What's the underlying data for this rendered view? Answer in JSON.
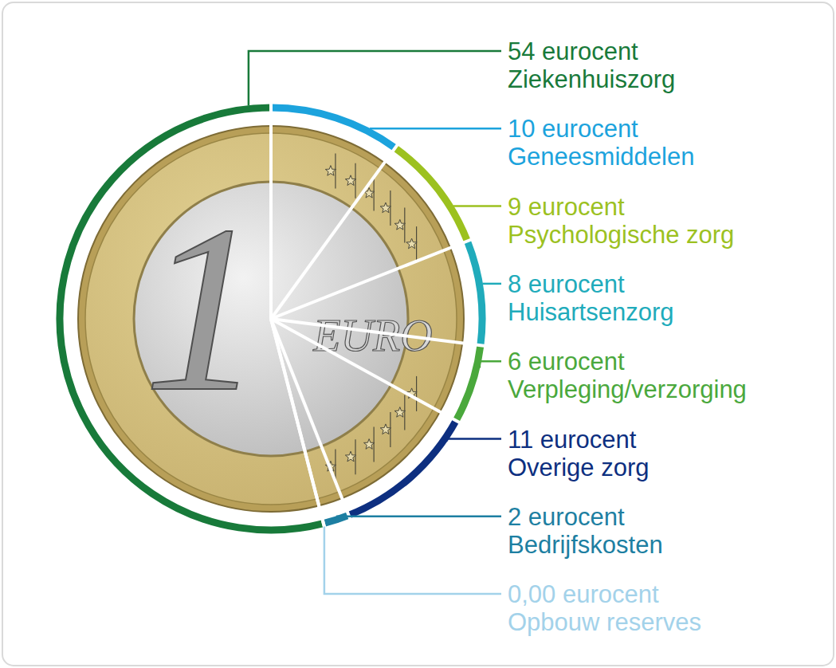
{
  "chart_data": {
    "type": "pie",
    "categories": [
      "Ziekenhuiszorg",
      "Geneesmiddelen",
      "Psychologische zorg",
      "Huisartsenzorg",
      "Verpleging/verzorging",
      "Overige zorg",
      "Bedrijfskosten",
      "Opbouw reserves"
    ],
    "values": [
      54,
      10,
      9,
      8,
      6,
      11,
      2,
      0
    ],
    "value_labels": [
      "54 eurocent",
      "10 eurocent",
      "9 eurocent",
      "8 eurocent",
      "6 eurocent",
      "11 eurocent",
      "2 eurocent",
      "0,00 eurocent"
    ],
    "colors": [
      "#187a3a",
      "#1ca3dd",
      "#9cc11f",
      "#20abbb",
      "#4aa83c",
      "#0d2f80",
      "#1d7fa2",
      "#a3d2ea"
    ],
    "data_labels": true
  },
  "coin": {
    "numeral": "1",
    "text": "EURO"
  }
}
